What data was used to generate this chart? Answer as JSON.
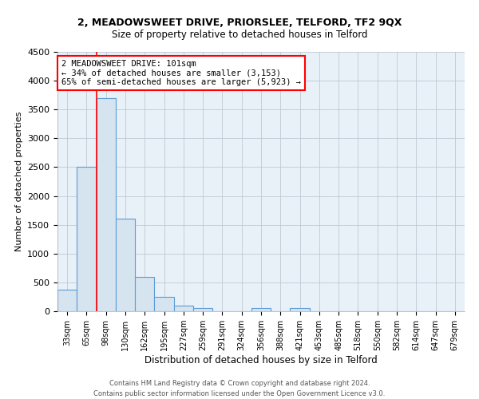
{
  "title": "2, MEADOWSWEET DRIVE, PRIORSLEE, TELFORD, TF2 9QX",
  "subtitle": "Size of property relative to detached houses in Telford",
  "xlabel": "Distribution of detached houses by size in Telford",
  "ylabel": "Number of detached properties",
  "bar_labels": [
    "33sqm",
    "65sqm",
    "98sqm",
    "130sqm",
    "162sqm",
    "195sqm",
    "227sqm",
    "259sqm",
    "291sqm",
    "324sqm",
    "356sqm",
    "388sqm",
    "421sqm",
    "453sqm",
    "485sqm",
    "518sqm",
    "550sqm",
    "582sqm",
    "614sqm",
    "647sqm",
    "679sqm"
  ],
  "bar_values": [
    380,
    2500,
    3700,
    1600,
    600,
    245,
    100,
    50,
    0,
    0,
    50,
    0,
    50,
    0,
    0,
    0,
    0,
    0,
    0,
    0,
    0
  ],
  "bar_fill_color": "#d6e4f0",
  "bar_edge_color": "#5b9bd5",
  "annotation_line1": "2 MEADOWSWEET DRIVE: 101sqm",
  "annotation_line2": "← 34% of detached houses are smaller (3,153)",
  "annotation_line3": "65% of semi-detached houses are larger (5,923) →",
  "property_line_xidx": 2,
  "ylim": [
    0,
    4500
  ],
  "yticks": [
    0,
    500,
    1000,
    1500,
    2000,
    2500,
    3000,
    3500,
    4000,
    4500
  ],
  "footer_line1": "Contains HM Land Registry data © Crown copyright and database right 2024.",
  "footer_line2": "Contains public sector information licensed under the Open Government Licence v3.0.",
  "background_color": "#ffffff",
  "plot_bg_color": "#e8f0f8",
  "grid_color": "#c0c8d4",
  "title_fontsize": 9,
  "subtitle_fontsize": 8.5
}
